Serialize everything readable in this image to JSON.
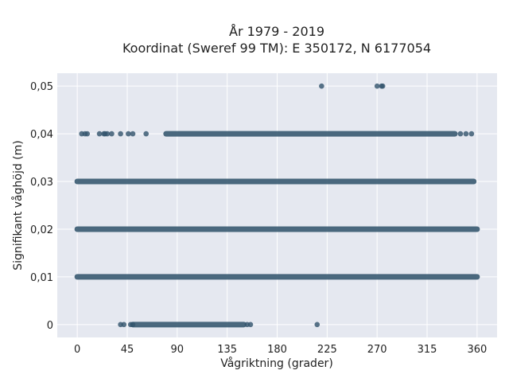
{
  "chart_data": {
    "type": "scatter",
    "title": "År 1979 - 2019",
    "subtitle": "Koordinat (Sweref 99 TM): E 350172, N 6177054",
    "xlabel": "Vågriktning (grader)",
    "ylabel": "Signifikant våghöjd (m)",
    "xlim": [
      -18,
      378
    ],
    "ylim": [
      -0.0027,
      0.0527
    ],
    "xticks": [
      0,
      45,
      90,
      135,
      180,
      225,
      270,
      315,
      360
    ],
    "xtick_labels": [
      "0",
      "45",
      "90",
      "135",
      "180",
      "225",
      "270",
      "315",
      "360"
    ],
    "yticks": [
      0,
      0.01,
      0.02,
      0.03,
      0.04,
      0.05
    ],
    "ytick_labels": [
      "0",
      "0,01",
      "0,02",
      "0,03",
      "0,04",
      "0,05"
    ],
    "grid": true,
    "marker_color": "#34566e",
    "background_color": "#e5e8f0",
    "series": [
      {
        "points": [
          {
            "x": 39,
            "y": 0
          },
          {
            "x": 42,
            "y": 0
          },
          {
            "x": 48,
            "y": 0
          },
          {
            "x": 50,
            "y": 0
          },
          {
            "x": 50,
            "y": 0,
            "x_end": 150
          },
          {
            "x": 153,
            "y": 0
          },
          {
            "x": 156,
            "y": 0
          },
          {
            "x": 216,
            "y": 0
          },
          {
            "x": 0,
            "y": 0.01,
            "x_end": 360
          },
          {
            "x": 0,
            "y": 0.02,
            "x_end": 360
          },
          {
            "x": 0,
            "y": 0.03,
            "x_end": 357
          },
          {
            "x": 4,
            "y": 0.04
          },
          {
            "x": 7,
            "y": 0.04
          },
          {
            "x": 9,
            "y": 0.04
          },
          {
            "x": 20,
            "y": 0.04
          },
          {
            "x": 24,
            "y": 0.04
          },
          {
            "x": 25,
            "y": 0.04
          },
          {
            "x": 27,
            "y": 0.04
          },
          {
            "x": 31,
            "y": 0.04
          },
          {
            "x": 39,
            "y": 0.04
          },
          {
            "x": 46,
            "y": 0.04
          },
          {
            "x": 50,
            "y": 0.04
          },
          {
            "x": 62,
            "y": 0.04
          },
          {
            "x": 80,
            "y": 0.04,
            "x_end": 340
          },
          {
            "x": 345,
            "y": 0.04
          },
          {
            "x": 350,
            "y": 0.04
          },
          {
            "x": 355,
            "y": 0.04
          },
          {
            "x": 220,
            "y": 0.05
          },
          {
            "x": 270,
            "y": 0.05
          },
          {
            "x": 274,
            "y": 0.05
          },
          {
            "x": 275,
            "y": 0.05
          }
        ]
      }
    ]
  }
}
